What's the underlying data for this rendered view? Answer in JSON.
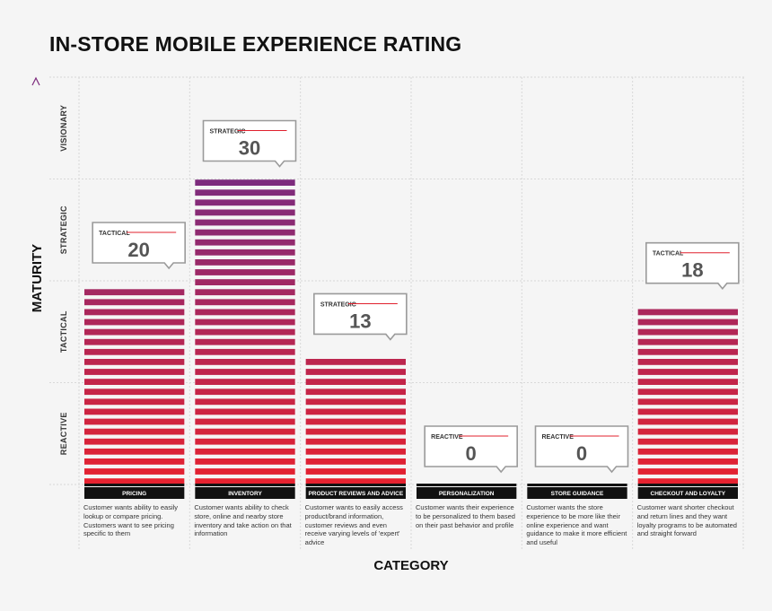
{
  "chart_data": {
    "type": "bar",
    "title": "IN-STORE MOBILE EXPERIENCE RATING",
    "xlabel": "CATEGORY",
    "ylabel": "MATURITY",
    "ylim": [
      0,
      40
    ],
    "levels": [
      "REACTIVE",
      "TACTICAL",
      "STRATEGIC",
      "VISIONARY"
    ],
    "categories": [
      "PRICING",
      "INVENTORY",
      "PRODUCT REVIEWS AND ADVICE",
      "PERSONALIZATION",
      "STORE GUIDANCE",
      "CHECKOUT AND LOYALTY"
    ],
    "values": [
      20,
      30,
      13,
      0,
      0,
      18
    ],
    "value_labels": [
      "20",
      "30",
      "13",
      "0",
      "0",
      "18"
    ],
    "ratings": [
      "TACTICAL",
      "STRATEGIC",
      "STRATEGIC",
      "REACTIVE",
      "REACTIVE",
      "TACTICAL"
    ],
    "descriptions": [
      "Customer wants ability to easily lookup or compare pricing. Customers want to see pricing specific to them",
      "Customer wants ability to check store, online and nearby store inventory and take action on that information",
      "Customer wants to easily access product/brand information, customer reviews and even receive varying levels of 'expert' advice",
      "Customer wants their experience to be personalized to them based on their past behavior and profile",
      "Customer wants the store experience to be more like their online experience and want guidance to make it more efficient and useful",
      "Customer want shorter checkout and return lines and they want loyalty programs to be automated and straight forward"
    ],
    "colors": {
      "bottom": "#e8222e",
      "top": "#7d2b7d",
      "label_bg": "#111111",
      "accent_line": "#e0202e"
    }
  }
}
